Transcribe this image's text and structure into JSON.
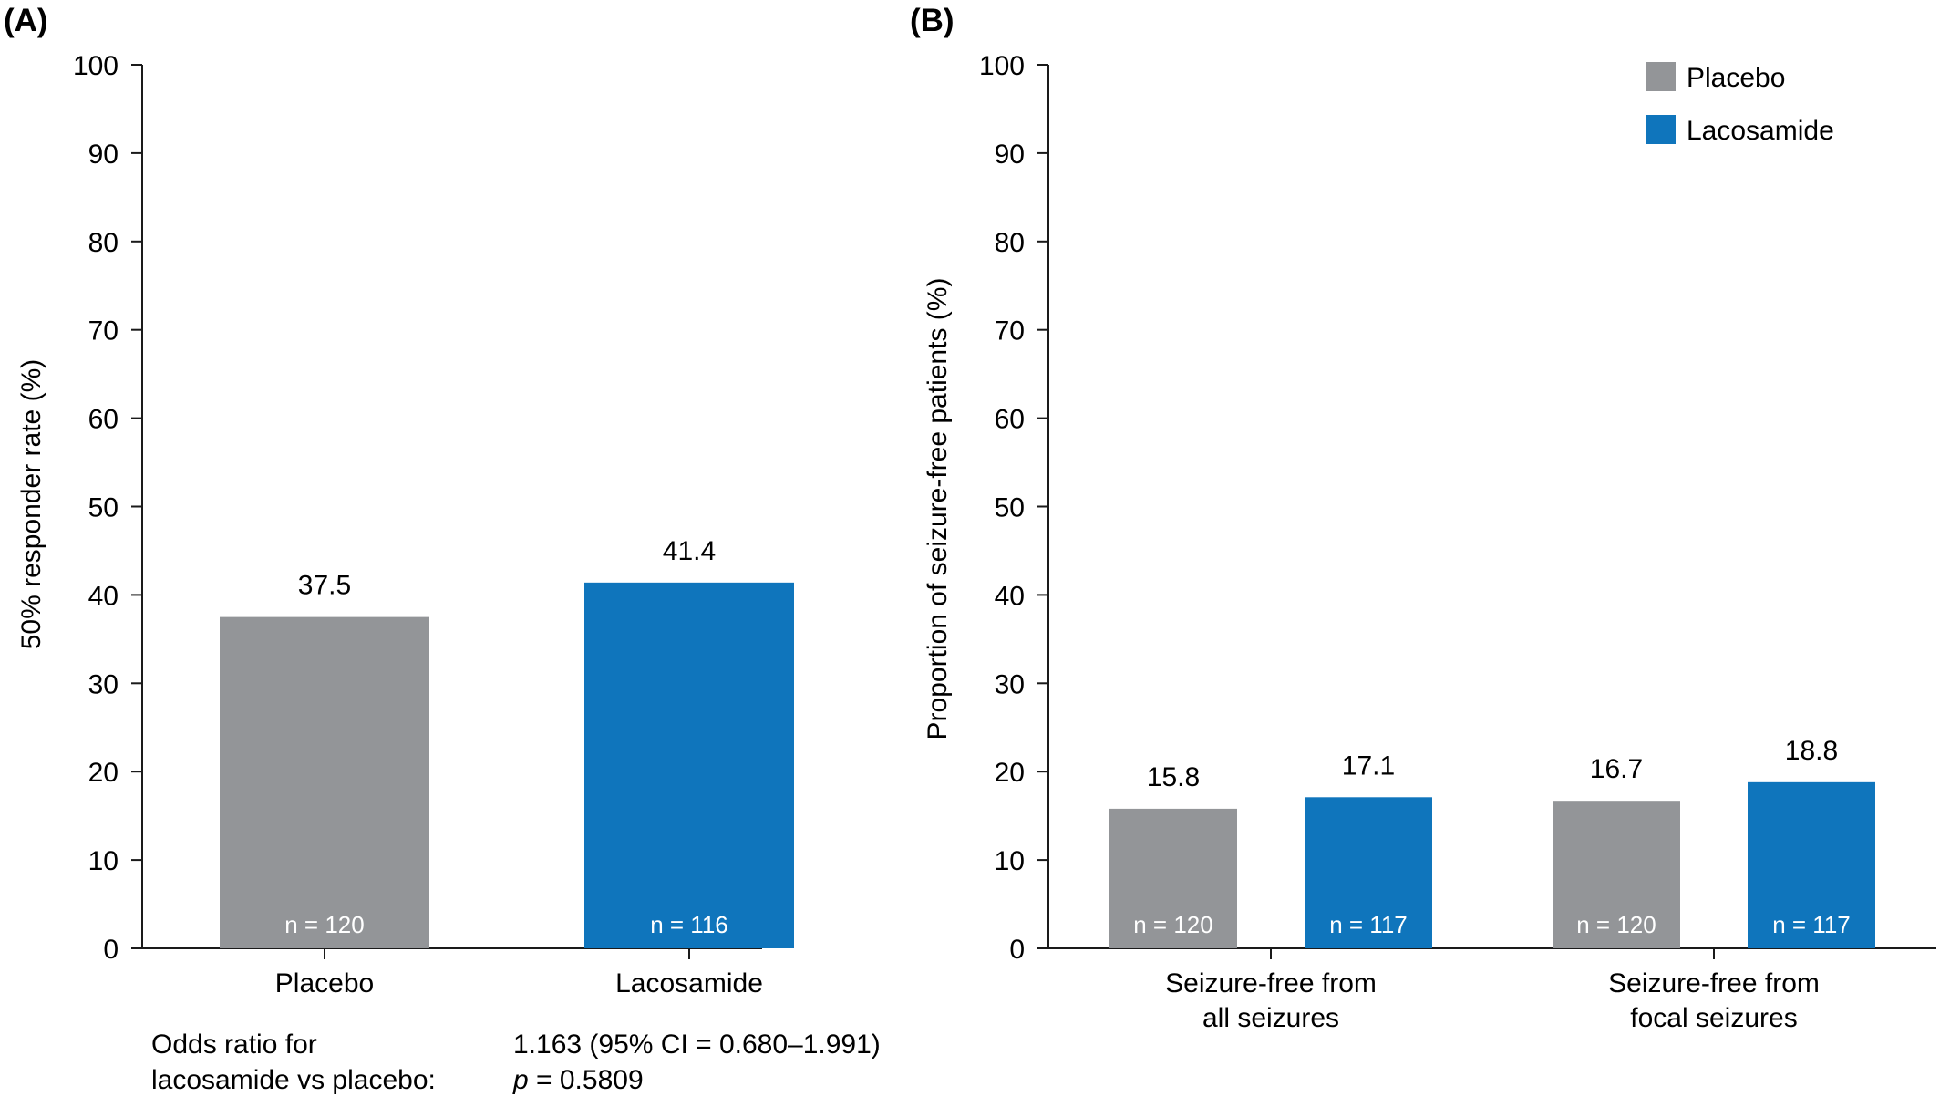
{
  "colors": {
    "placebo": "#939598",
    "lacosamide": "#0f75bc",
    "axis": "#1a1a1a"
  },
  "chart_data": [
    {
      "panel": "(A)",
      "type": "bar",
      "ylabel": "50% responder rate (%)",
      "ylim": [
        0,
        100
      ],
      "yticks": [
        "0",
        "10",
        "20",
        "30",
        "40",
        "50",
        "60",
        "70",
        "80",
        "90",
        "100"
      ],
      "categories": [
        "Placebo",
        "Lacosamide"
      ],
      "values": [
        37.5,
        41.4
      ],
      "value_labels": [
        "37.5",
        "41.4"
      ],
      "n_labels": [
        "n = 120",
        "n = 116"
      ],
      "footnote": {
        "label_line1": "Odds ratio for",
        "label_line2": "lacosamide vs placebo:",
        "value_line1": "1.163 (95% CI = 0.680–1.991)",
        "value_line2_prefix": "p",
        "value_line2_rest": " = 0.5809"
      }
    },
    {
      "panel": "(B)",
      "type": "bar",
      "ylabel": "Proportion of seizure-free patients (%)",
      "ylim": [
        0,
        100
      ],
      "yticks": [
        "0",
        "10",
        "20",
        "30",
        "40",
        "50",
        "60",
        "70",
        "80",
        "90",
        "100"
      ],
      "categories": [
        [
          "Seizure-free from",
          "all seizures"
        ],
        [
          "Seizure-free from",
          "focal seizures"
        ]
      ],
      "legend": [
        "Placebo",
        "Lacosamide"
      ],
      "series": [
        {
          "name": "Placebo",
          "values": [
            15.8,
            16.7
          ],
          "value_labels": [
            "15.8",
            "16.7"
          ],
          "n_labels": [
            "n = 120",
            "n = 120"
          ]
        },
        {
          "name": "Lacosamide",
          "values": [
            17.1,
            18.8
          ],
          "value_labels": [
            "17.1",
            "18.8"
          ],
          "n_labels": [
            "n = 117",
            "n = 117"
          ]
        }
      ]
    }
  ]
}
